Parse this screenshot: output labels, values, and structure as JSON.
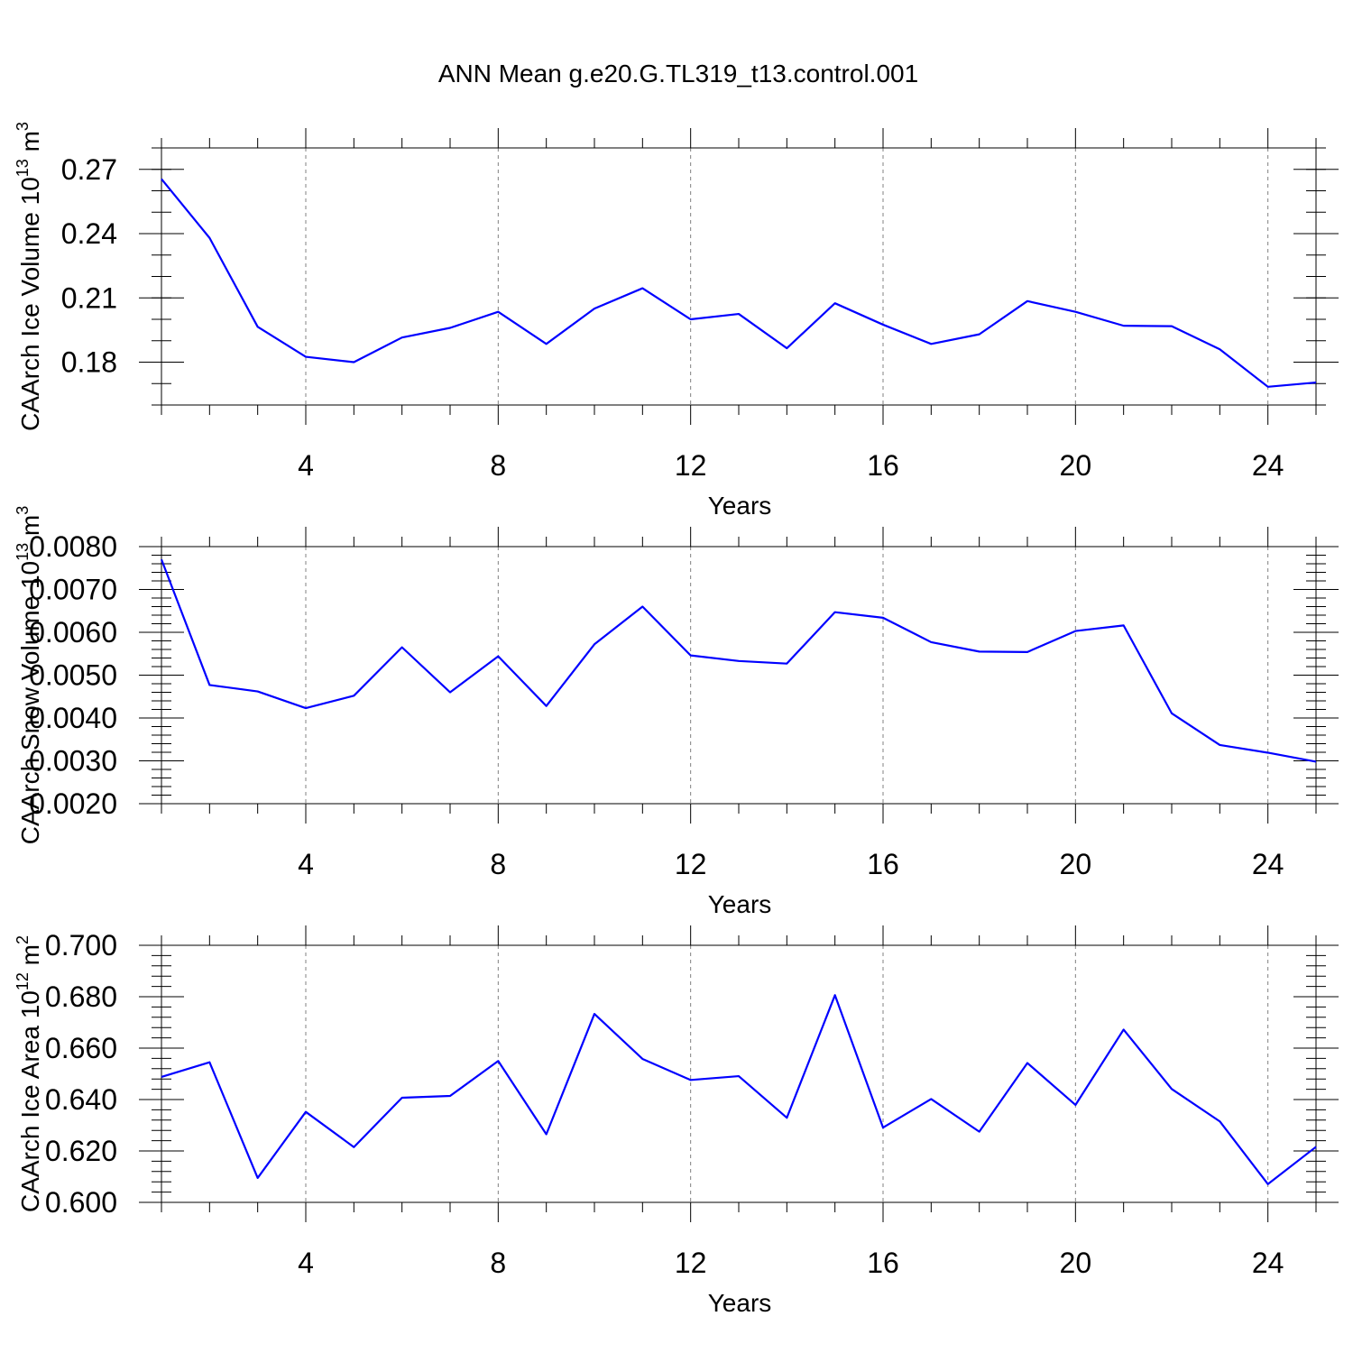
{
  "title": "ANN Mean g.e20.G.TL319_t13.control.001",
  "colors": {
    "line": "#0000ff",
    "frame": "#000000",
    "grid": "#808080"
  },
  "chart_data": [
    {
      "type": "line",
      "title": "",
      "xlabel": "Years",
      "ylabel": "CAArch Ice Volume 10",
      "ylabel_exp": "13",
      "ylabel_unit": " m",
      "ylabel_unit_exp": "3",
      "xlim": [
        1,
        25
      ],
      "ylim": [
        0.16,
        0.28
      ],
      "x_ticks": [
        4,
        8,
        12,
        16,
        20,
        24
      ],
      "y_ticks": [
        "0.18",
        "0.21",
        "0.24",
        "0.27"
      ],
      "y_minor_step": 0.01,
      "grid": "dashed vertical lines at x ticks",
      "x": [
        1,
        2,
        3,
        4,
        5,
        6,
        7,
        8,
        9,
        10,
        11,
        12,
        13,
        14,
        15,
        16,
        17,
        18,
        19,
        20,
        21,
        22,
        23,
        24,
        25
      ],
      "series": [
        {
          "values": [
            0.2655,
            0.238,
            0.1965,
            0.1825,
            0.18,
            0.1915,
            0.196,
            0.2035,
            0.1885,
            0.205,
            0.2145,
            0.2,
            0.2025,
            0.1865,
            0.2075,
            0.1975,
            0.1885,
            0.193,
            0.2085,
            0.2035,
            0.197,
            0.1968,
            0.186,
            0.1685,
            0.1705
          ]
        }
      ]
    },
    {
      "type": "line",
      "title": "",
      "xlabel": "Years",
      "ylabel": "CAArch Snow Volume 10",
      "ylabel_exp": "13",
      "ylabel_unit": " m",
      "ylabel_unit_exp": "3",
      "xlim": [
        1,
        25
      ],
      "ylim": [
        0.002,
        0.008
      ],
      "x_ticks": [
        4,
        8,
        12,
        16,
        20,
        24
      ],
      "y_ticks": [
        "0.0020",
        "0.0030",
        "0.0040",
        "0.0050",
        "0.0060",
        "0.0070",
        "0.0080"
      ],
      "y_minor_step": 0.0002,
      "grid": "dashed vertical lines at x ticks",
      "x": [
        1,
        2,
        3,
        4,
        5,
        6,
        7,
        8,
        9,
        10,
        11,
        12,
        13,
        14,
        15,
        16,
        17,
        18,
        19,
        20,
        21,
        22,
        23,
        24,
        25
      ],
      "series": [
        {
          "values": [
            0.0077,
            0.00477,
            0.00462,
            0.00423,
            0.00452,
            0.00565,
            0.0046,
            0.00544,
            0.00428,
            0.00572,
            0.0066,
            0.00546,
            0.00533,
            0.00527,
            0.00647,
            0.00634,
            0.00577,
            0.00555,
            0.00554,
            0.00603,
            0.00616,
            0.00411,
            0.00337,
            0.00319,
            0.00298
          ]
        }
      ]
    },
    {
      "type": "line",
      "title": "",
      "xlabel": "Years",
      "ylabel": "CAArch Ice Area 10",
      "ylabel_exp": "12",
      "ylabel_unit": " m",
      "ylabel_unit_exp": "2",
      "xlim": [
        1,
        25
      ],
      "ylim": [
        0.6,
        0.7
      ],
      "x_ticks": [
        4,
        8,
        12,
        16,
        20,
        24
      ],
      "y_ticks": [
        "0.600",
        "0.620",
        "0.640",
        "0.660",
        "0.680",
        "0.700"
      ],
      "y_minor_step": 0.004,
      "grid": "dashed vertical lines at x ticks",
      "x": [
        1,
        2,
        3,
        4,
        5,
        6,
        7,
        8,
        9,
        10,
        11,
        12,
        13,
        14,
        15,
        16,
        17,
        18,
        19,
        20,
        21,
        22,
        23,
        24,
        25
      ],
      "series": [
        {
          "values": [
            0.6488,
            0.6545,
            0.6095,
            0.6352,
            0.6215,
            0.6407,
            0.6414,
            0.655,
            0.6265,
            0.6733,
            0.6558,
            0.6476,
            0.6491,
            0.6329,
            0.6806,
            0.6291,
            0.6402,
            0.6275,
            0.6542,
            0.6379,
            0.6672,
            0.6441,
            0.6315,
            0.6071,
            0.6216
          ]
        }
      ]
    }
  ]
}
